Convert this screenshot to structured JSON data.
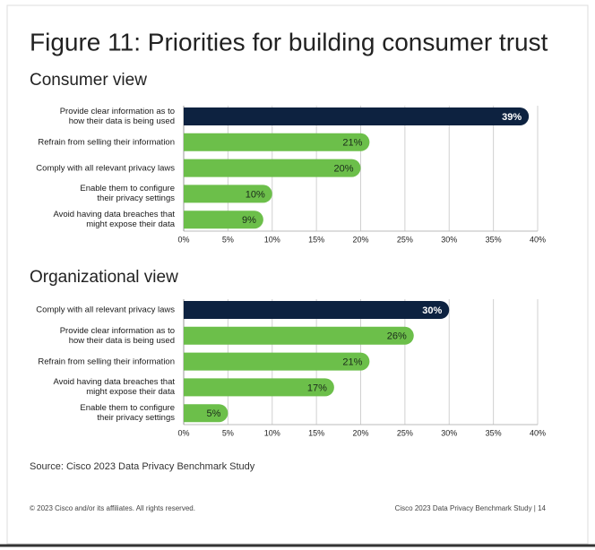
{
  "title": "Figure 11: Priorities for building consumer trust",
  "source": "Source: Cisco 2023 Data Privacy Benchmark Study",
  "footer_left": "© 2023 Cisco and/or its affiliates. All rights reserved.",
  "footer_right": "Cisco 2023 Data Privacy Benchmark Study |  14",
  "chart_data": [
    {
      "type": "bar",
      "orientation": "horizontal",
      "title": "Consumer view",
      "categories": [
        "Provide clear information as to\nhow their data is being used",
        "Refrain from selling their information",
        "Comply with all relevant privacy laws",
        "Enable them to configure\ntheir privacy settings",
        "Avoid having data breaches that\nmight expose their data"
      ],
      "values": [
        39,
        21,
        20,
        10,
        9
      ],
      "value_labels": [
        "39%",
        "21%",
        "20%",
        "10%",
        "9%"
      ],
      "colors": [
        "#0d2240",
        "#6cbf4a",
        "#6cbf4a",
        "#6cbf4a",
        "#6cbf4a"
      ],
      "xlim": [
        0,
        40
      ],
      "xticks": [
        {
          "value": 0,
          "label": "0%"
        },
        {
          "value": 5,
          "label": "5%"
        },
        {
          "value": 10,
          "label": "10%"
        },
        {
          "value": 15,
          "label": "15%"
        },
        {
          "value": 20,
          "label": "20%"
        },
        {
          "value": 25,
          "label": "25%"
        },
        {
          "value": 30,
          "label": "30%"
        },
        {
          "value": 35,
          "label": "35%"
        },
        {
          "value": 40,
          "label": "40%"
        }
      ],
      "grid": true
    },
    {
      "type": "bar",
      "orientation": "horizontal",
      "title": "Organizational view",
      "categories": [
        "Comply with all relevant privacy laws",
        "Provide clear information as to\nhow their data is being used",
        "Refrain from selling their information",
        "Avoid having data breaches that\nmight expose their data",
        "Enable them to configure\ntheir privacy settings"
      ],
      "values": [
        30,
        26,
        21,
        17,
        5
      ],
      "value_labels": [
        "30%",
        "26%",
        "21%",
        "17%",
        "5%"
      ],
      "colors": [
        "#0d2240",
        "#6cbf4a",
        "#6cbf4a",
        "#6cbf4a",
        "#6cbf4a"
      ],
      "xlim": [
        0,
        40
      ],
      "xticks": [
        {
          "value": 0,
          "label": "0%"
        },
        {
          "value": 5,
          "label": "5%"
        },
        {
          "value": 10,
          "label": "10%"
        },
        {
          "value": 15,
          "label": "15%"
        },
        {
          "value": 20,
          "label": "20%"
        },
        {
          "value": 25,
          "label": "25%"
        },
        {
          "value": 30,
          "label": "30%"
        },
        {
          "value": 35,
          "label": "35%"
        },
        {
          "value": 40,
          "label": "40%"
        }
      ],
      "grid": true
    }
  ]
}
